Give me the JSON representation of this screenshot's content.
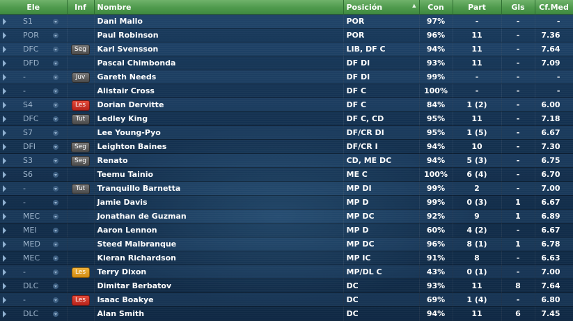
{
  "columns": {
    "ele": "Ele",
    "inf": "Inf",
    "nombre": "Nombre",
    "posicion": "Posición",
    "con": "Con",
    "part": "Part",
    "gls": "Gls",
    "cfmed": "Cf.Med"
  },
  "sort": {
    "column": "posicion",
    "direction": "ascending"
  },
  "badge_colors": {
    "dark": "#555555",
    "red": "#c9302c",
    "orange": "#e09a20"
  },
  "players": [
    {
      "ele": "S1",
      "inf": "",
      "badge": "",
      "name": "Dani Mallo",
      "pos": "POR",
      "con": "97%",
      "part": "-",
      "gls": "-",
      "cf": "-"
    },
    {
      "ele": "POR",
      "inf": "",
      "badge": "",
      "name": "Paul Robinson",
      "pos": "POR",
      "con": "96%",
      "part": "11",
      "gls": "-",
      "cf": "7.36"
    },
    {
      "ele": "DFC",
      "inf": "Seg",
      "badge": "dark",
      "name": "Karl Svensson",
      "pos": "LIB, DF C",
      "con": "94%",
      "part": "11",
      "gls": "-",
      "cf": "7.64"
    },
    {
      "ele": "DFD",
      "inf": "",
      "badge": "",
      "name": "Pascal Chimbonda",
      "pos": "DF DI",
      "con": "93%",
      "part": "11",
      "gls": "-",
      "cf": "7.09"
    },
    {
      "ele": "-",
      "inf": "Juv",
      "badge": "dark",
      "name": "Gareth Needs",
      "pos": "DF DI",
      "con": "99%",
      "part": "-",
      "gls": "-",
      "cf": "-"
    },
    {
      "ele": "-",
      "inf": "",
      "badge": "",
      "name": "Alistair Cross",
      "pos": "DF C",
      "con": "100%",
      "part": "-",
      "gls": "-",
      "cf": "-"
    },
    {
      "ele": "S4",
      "inf": "Les",
      "badge": "red",
      "name": "Dorian Dervitte",
      "pos": "DF C",
      "con": "84%",
      "part": "1 (2)",
      "gls": "-",
      "cf": "6.00"
    },
    {
      "ele": "DFC",
      "inf": "Tut",
      "badge": "dark",
      "name": "Ledley King",
      "pos": "DF C, CD",
      "con": "95%",
      "part": "11",
      "gls": "-",
      "cf": "7.18"
    },
    {
      "ele": "S7",
      "inf": "",
      "badge": "",
      "name": "Lee Young-Pyo",
      "pos": "DF/CR DI",
      "con": "95%",
      "part": "1 (5)",
      "gls": "-",
      "cf": "6.67"
    },
    {
      "ele": "DFI",
      "inf": "Seg",
      "badge": "dark",
      "name": "Leighton Baines",
      "pos": "DF/CR I",
      "con": "94%",
      "part": "10",
      "gls": "-",
      "cf": "7.30"
    },
    {
      "ele": "S3",
      "inf": "Seg",
      "badge": "dark",
      "name": "Renato",
      "pos": "CD, ME DC",
      "con": "94%",
      "part": "5 (3)",
      "gls": "-",
      "cf": "6.75"
    },
    {
      "ele": "S6",
      "inf": "",
      "badge": "",
      "name": "Teemu Tainio",
      "pos": "ME C",
      "con": "100%",
      "part": "6 (4)",
      "gls": "-",
      "cf": "6.70"
    },
    {
      "ele": "-",
      "inf": "Tut",
      "badge": "dark",
      "name": "Tranquillo Barnetta",
      "pos": "MP DI",
      "con": "99%",
      "part": "2",
      "gls": "-",
      "cf": "7.00"
    },
    {
      "ele": "-",
      "inf": "",
      "badge": "",
      "name": "Jamie Davis",
      "pos": "MP D",
      "con": "99%",
      "part": "0 (3)",
      "gls": "1",
      "cf": "6.67"
    },
    {
      "ele": "MEC",
      "inf": "",
      "badge": "",
      "name": "Jonathan de Guzman",
      "pos": "MP DC",
      "con": "92%",
      "part": "9",
      "gls": "1",
      "cf": "6.89"
    },
    {
      "ele": "MEI",
      "inf": "",
      "badge": "",
      "name": "Aaron Lennon",
      "pos": "MP D",
      "con": "60%",
      "part": "4 (2)",
      "gls": "-",
      "cf": "6.67"
    },
    {
      "ele": "MED",
      "inf": "",
      "badge": "",
      "name": "Steed Malbranque",
      "pos": "MP DC",
      "con": "96%",
      "part": "8 (1)",
      "gls": "1",
      "cf": "6.78"
    },
    {
      "ele": "MEC",
      "inf": "",
      "badge": "",
      "name": "Kieran Richardson",
      "pos": "MP IC",
      "con": "91%",
      "part": "8",
      "gls": "-",
      "cf": "6.63"
    },
    {
      "ele": "-",
      "inf": "Les",
      "badge": "orange",
      "name": "Terry Dixon",
      "pos": "MP/DL C",
      "con": "43%",
      "part": "0 (1)",
      "gls": "-",
      "cf": "7.00"
    },
    {
      "ele": "DLC",
      "inf": "",
      "badge": "",
      "name": "Dimitar Berbatov",
      "pos": "DC",
      "con": "93%",
      "part": "11",
      "gls": "8",
      "cf": "7.64"
    },
    {
      "ele": "-",
      "inf": "Les",
      "badge": "red",
      "name": "Isaac Boakye",
      "pos": "DC",
      "con": "69%",
      "part": "1 (4)",
      "gls": "-",
      "cf": "6.80"
    },
    {
      "ele": "DLC",
      "inf": "",
      "badge": "",
      "name": "Alan Smith",
      "pos": "DC",
      "con": "94%",
      "part": "11",
      "gls": "6",
      "cf": "7.45"
    }
  ]
}
